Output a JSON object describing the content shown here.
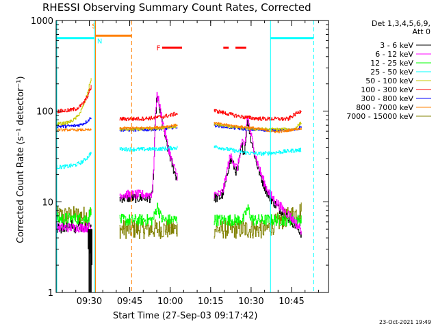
{
  "chart_data": {
    "type": "line",
    "title": "RHESSI Observing Summary Count Rates, Corrected",
    "xlabel": "Start Time (27-Sep-03 09:17:42)",
    "ylabel": "Corrected Count Rate (s⁻¹ detector⁻¹)",
    "yscale": "log",
    "ylim": [
      1,
      1000
    ],
    "xlim_minutes": [
      0,
      53.6
    ],
    "y_ticks": [
      {
        "value": 1,
        "label": "1"
      },
      {
        "value": 10,
        "label": "10"
      },
      {
        "value": 100,
        "label": "100"
      },
      {
        "value": 1000,
        "label": "1000"
      }
    ],
    "x_ticks": [
      {
        "minute": 12.3,
        "label": "09:30"
      },
      {
        "minute": 27.3,
        "label": "09:45"
      },
      {
        "minute": 42.3,
        "label": "10:00"
      },
      {
        "minute": 57.3,
        "label": "10:15"
      },
      {
        "minute": 72.3,
        "label": "10:30"
      },
      {
        "minute": 87.3,
        "label": "10:45"
      }
    ],
    "legend_header": [
      "Det 1,3,4,5,6,9,",
      "Att 0"
    ],
    "series": [
      {
        "name": "3 - 6 keV",
        "color": "#000000"
      },
      {
        "name": "6 - 12 keV",
        "color": "#ff00ff"
      },
      {
        "name": "12 - 25 keV",
        "color": "#00ff00"
      },
      {
        "name": "25 - 50 keV",
        "color": "#00ffff"
      },
      {
        "name": "50 - 100 keV",
        "color": "#c8c800"
      },
      {
        "name": "100 - 300 keV",
        "color": "#ff0000"
      },
      {
        "name": "300 - 800 keV",
        "color": "#0000ff"
      },
      {
        "name": "800 - 7000 keV",
        "color": "#ff8000"
      },
      {
        "name": "7000 - 15000 keV",
        "color": "#808000"
      }
    ],
    "annotations": [
      {
        "label": "S",
        "color": "#ff8000"
      },
      {
        "label": "N",
        "color": "#00ffff"
      },
      {
        "label": "F",
        "color": "#ff0000"
      }
    ],
    "peaks": [
      {
        "time": "10:06",
        "approx_counts": 170
      },
      {
        "time": "10:33",
        "approx_counts": 130
      }
    ]
  },
  "stamp": "23-Oct-2021 19:49"
}
